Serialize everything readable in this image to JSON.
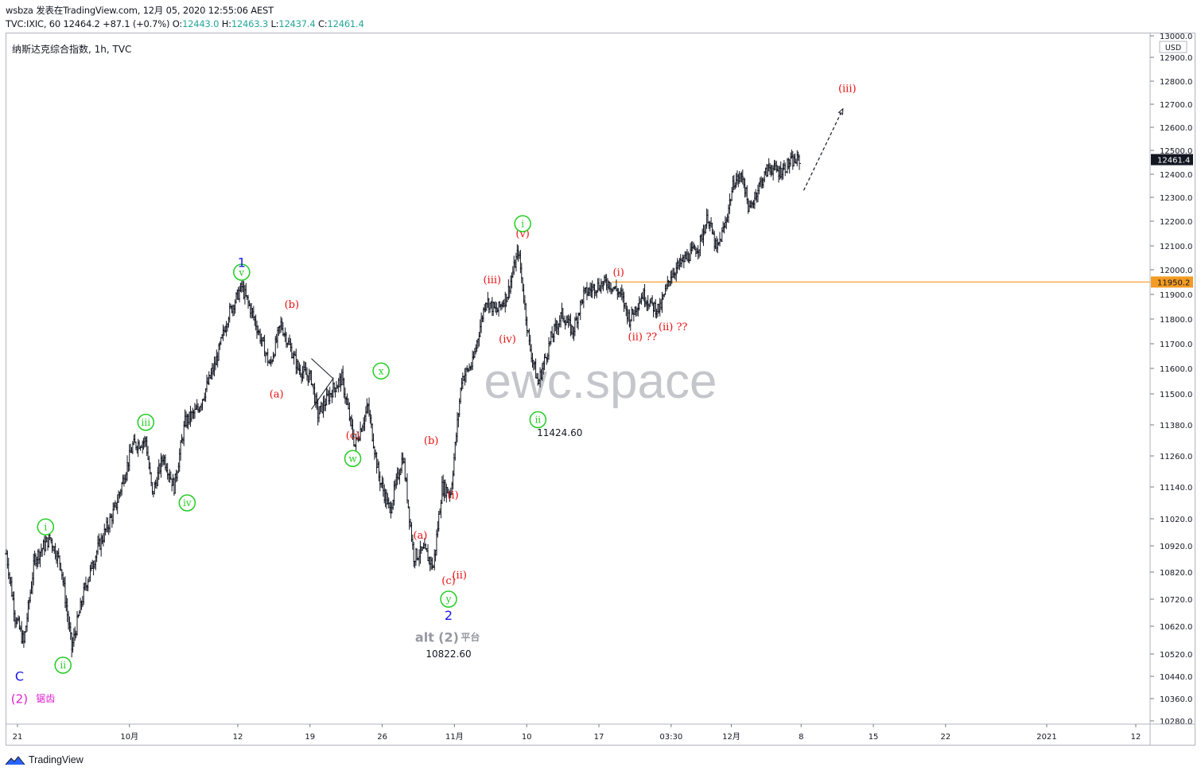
{
  "header": {
    "line1": "wsbza 发表在TradingView.com, 12月 05, 2020 12:55:06 AEST",
    "symbol": "TVC:IXIC, 60",
    "last": "12464.2",
    "change": "+87.1 (+0.7%)",
    "o_label": "O:",
    "o_value": "12443.0",
    "h_label": "H:",
    "h_value": "12463.3",
    "l_label": "L:",
    "l_value": "12437.4",
    "c_label": "C:",
    "c_value": "12461.4"
  },
  "legend_title": "纳斯达克综合指数, 1h, TVC",
  "watermark": "ewc.space",
  "footer_brand": "TradingView",
  "colors": {
    "bars": "#131722",
    "red_label": "#e81010",
    "green_label": "#22cc22",
    "blue_label": "#1a1ae6",
    "magenta_label": "#e020d0",
    "grey_label": "#9598a1",
    "level_line": "#f39b22",
    "price_tag": "#131722"
  },
  "chart_data": {
    "type": "ohlc",
    "title": "",
    "currency": "USD",
    "ylim": [
      10200,
      13060
    ],
    "y_ticks": [
      "13000.0",
      "12900.0",
      "12800.0",
      "12700.0",
      "12600.0",
      "12500.0",
      "12400.0",
      "12300.0",
      "12200.0",
      "12100.0",
      "12000.0",
      "11900.0",
      "11800.0",
      "11700.0",
      "11600.0",
      "11500.0",
      "11380.0",
      "11260.0",
      "11140.0",
      "11020.0",
      "10920.0",
      "10820.0",
      "10720.0",
      "10620.0",
      "10520.0",
      "10440.0",
      "10360.0",
      "10280.0"
    ],
    "x_ticks": [
      "21",
      "10月",
      "12",
      "19",
      "26",
      "11月",
      "10",
      "17",
      "03:30",
      "12月",
      "8",
      "15",
      "22",
      "2021",
      "12"
    ],
    "last_price": "12461.4",
    "level": {
      "price": 11950.2,
      "label": "11950.2"
    },
    "price_points": [
      {
        "t": 0,
        "p": 10890
      },
      {
        "t": 4,
        "p": 10660
      },
      {
        "t": 8,
        "p": 10560
      },
      {
        "t": 13,
        "p": 10870
      },
      {
        "t": 20,
        "p": 10950
      },
      {
        "t": 25,
        "p": 10850
      },
      {
        "t": 30,
        "p": 10540
      },
      {
        "t": 36,
        "p": 10760
      },
      {
        "t": 42,
        "p": 10910
      },
      {
        "t": 50,
        "p": 11060
      },
      {
        "t": 58,
        "p": 11300
      },
      {
        "t": 64,
        "p": 11320
      },
      {
        "t": 67,
        "p": 11110
      },
      {
        "t": 72,
        "p": 11260
      },
      {
        "t": 77,
        "p": 11140
      },
      {
        "t": 82,
        "p": 11390
      },
      {
        "t": 88,
        "p": 11440
      },
      {
        "t": 96,
        "p": 11620
      },
      {
        "t": 102,
        "p": 11820
      },
      {
        "t": 108,
        "p": 11930
      },
      {
        "t": 113,
        "p": 11820
      },
      {
        "t": 121,
        "p": 11610
      },
      {
        "t": 126,
        "p": 11780
      },
      {
        "t": 134,
        "p": 11600
      },
      {
        "t": 140,
        "p": 11560
      },
      {
        "t": 143,
        "p": 11420
      },
      {
        "t": 150,
        "p": 11520
      },
      {
        "t": 154,
        "p": 11560
      },
      {
        "t": 160,
        "p": 11300
      },
      {
        "t": 166,
        "p": 11450
      },
      {
        "t": 171,
        "p": 11180
      },
      {
        "t": 176,
        "p": 11050
      },
      {
        "t": 182,
        "p": 11260
      },
      {
        "t": 187,
        "p": 10880
      },
      {
        "t": 192,
        "p": 10900
      },
      {
        "t": 196,
        "p": 10840
      },
      {
        "t": 200,
        "p": 11140
      },
      {
        "t": 204,
        "p": 11120
      },
      {
        "t": 209,
        "p": 11560
      },
      {
        "t": 214,
        "p": 11620
      },
      {
        "t": 220,
        "p": 11880
      },
      {
        "t": 225,
        "p": 11830
      },
      {
        "t": 230,
        "p": 11900
      },
      {
        "t": 235,
        "p": 12080
      },
      {
        "t": 240,
        "p": 11700
      },
      {
        "t": 244,
        "p": 11540
      },
      {
        "t": 250,
        "p": 11720
      },
      {
        "t": 255,
        "p": 11820
      },
      {
        "t": 260,
        "p": 11750
      },
      {
        "t": 265,
        "p": 11900
      },
      {
        "t": 270,
        "p": 11930
      },
      {
        "t": 276,
        "p": 11950
      },
      {
        "t": 282,
        "p": 11900
      },
      {
        "t": 286,
        "p": 11800
      },
      {
        "t": 292,
        "p": 11900
      },
      {
        "t": 297,
        "p": 11850
      },
      {
        "t": 300,
        "p": 11840
      },
      {
        "t": 305,
        "p": 11980
      },
      {
        "t": 312,
        "p": 12050
      },
      {
        "t": 318,
        "p": 12100
      },
      {
        "t": 322,
        "p": 12220
      },
      {
        "t": 326,
        "p": 12080
      },
      {
        "t": 330,
        "p": 12190
      },
      {
        "t": 334,
        "p": 12370
      },
      {
        "t": 338,
        "p": 12390
      },
      {
        "t": 341,
        "p": 12240
      },
      {
        "t": 345,
        "p": 12340
      },
      {
        "t": 350,
        "p": 12430
      },
      {
        "t": 355,
        "p": 12410
      },
      {
        "t": 360,
        "p": 12450
      },
      {
        "t": 364,
        "p": 12461
      }
    ],
    "x_range": [
      0,
      525
    ],
    "projection": {
      "from": [
        12330
      ],
      "to": [
        12680
      ]
    },
    "annotations": [
      {
        "text": "C",
        "color": "blue",
        "t": 6,
        "p": 10440
      },
      {
        "text": "(2)",
        "color": "magenta",
        "t": 6,
        "p": 10360
      },
      {
        "text": "锯齿",
        "color": "magenta",
        "t": 18,
        "p": 10360
      },
      {
        "text": "i",
        "color": "green",
        "circled": true,
        "t": 18,
        "p": 10990
      },
      {
        "text": "ii",
        "color": "green",
        "circled": true,
        "t": 26,
        "p": 10480
      },
      {
        "text": "iii",
        "color": "green",
        "circled": true,
        "t": 64,
        "p": 11390
      },
      {
        "text": "iv",
        "color": "green",
        "circled": true,
        "t": 83,
        "p": 11080
      },
      {
        "text": "v",
        "color": "green",
        "circled": true,
        "t": 108,
        "p": 11990
      },
      {
        "text": "1",
        "color": "blue",
        "t": 108,
        "p": 12030
      },
      {
        "text": "(a)",
        "color": "red",
        "t": 124,
        "p": 11500
      },
      {
        "text": "(b)",
        "color": "red",
        "t": 131,
        "p": 11860
      },
      {
        "text": "(c)",
        "color": "red",
        "t": 159,
        "p": 11340
      },
      {
        "text": "w",
        "color": "green",
        "circled": true,
        "t": 159,
        "p": 11250
      },
      {
        "text": "x",
        "color": "green",
        "circled": true,
        "t": 172,
        "p": 11590
      },
      {
        "text": "(a)",
        "color": "red",
        "t": 190,
        "p": 10960
      },
      {
        "text": "(b)",
        "color": "red",
        "t": 195,
        "p": 11320
      },
      {
        "text": "(i)",
        "color": "red",
        "t": 205,
        "p": 11110
      },
      {
        "text": "(ii)",
        "color": "red",
        "t": 208,
        "p": 10810
      },
      {
        "text": "(c)",
        "color": "red",
        "t": 203,
        "p": 10790
      },
      {
        "text": "y",
        "color": "green",
        "circled": true,
        "t": 203,
        "p": 10720
      },
      {
        "text": "2",
        "color": "blue",
        "t": 203,
        "p": 10660
      },
      {
        "text": "alt",
        "color": "grey",
        "t": 192,
        "p": 10580
      },
      {
        "text": "(2)",
        "color": "grey",
        "t": 203,
        "p": 10580
      },
      {
        "text": "平台",
        "color": "grey",
        "t": 213,
        "p": 10580
      },
      {
        "text": "10822.60",
        "color": "dark",
        "t": 203,
        "p": 10520
      },
      {
        "text": "(iii)",
        "color": "red",
        "t": 223,
        "p": 11960
      },
      {
        "text": "(iv)",
        "color": "red",
        "t": 230,
        "p": 11720
      },
      {
        "text": "(v)",
        "color": "red",
        "t": 237,
        "p": 12150
      },
      {
        "text": "i",
        "color": "green",
        "circled": true,
        "t": 237,
        "p": 12190
      },
      {
        "text": "ii",
        "color": "green",
        "circled": true,
        "t": 244,
        "p": 11400
      },
      {
        "text": "11424.60",
        "color": "dark",
        "t": 254,
        "p": 11350
      },
      {
        "text": "(i)",
        "color": "red",
        "t": 281,
        "p": 11990
      },
      {
        "text": "(ii) ??",
        "color": "red",
        "t": 292,
        "p": 11730
      },
      {
        "text": "(ii) ??",
        "color": "red",
        "t": 306,
        "p": 11770
      },
      {
        "text": "(iii)",
        "color": "red",
        "t": 386,
        "p": 12770
      }
    ]
  }
}
